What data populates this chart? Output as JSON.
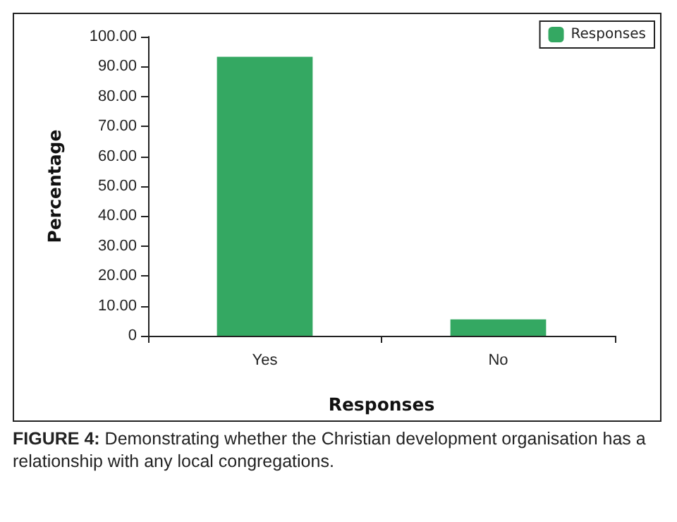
{
  "chart_data": {
    "type": "bar",
    "xlabel": "Responses",
    "ylabel": "Percentage",
    "categories": [
      "Yes",
      "No"
    ],
    "series": [
      {
        "name": "Responses",
        "color": "#34a862",
        "values": [
          93.3,
          5.5
        ]
      }
    ],
    "ylim": [
      0,
      100
    ],
    "yticks": [
      0,
      {
        "value": 10,
        "label": "10.00"
      },
      {
        "value": 20,
        "label": "20.00"
      },
      {
        "value": 30,
        "label": "30.00"
      },
      {
        "value": 40,
        "label": "40.00"
      },
      {
        "value": 50,
        "label": "50.00"
      },
      {
        "value": 60,
        "label": "60.00"
      },
      {
        "value": 70,
        "label": "70.00"
      },
      {
        "value": 80,
        "label": "80.00"
      },
      {
        "value": 90,
        "label": "90.00"
      },
      {
        "value": 100,
        "label": "100.00"
      }
    ],
    "grid": false,
    "legend": "top right",
    "annotations": [
      "FIGURE 4: Demonstrating whether the Christian development organisation has a relationship with any local congregations."
    ]
  }
}
